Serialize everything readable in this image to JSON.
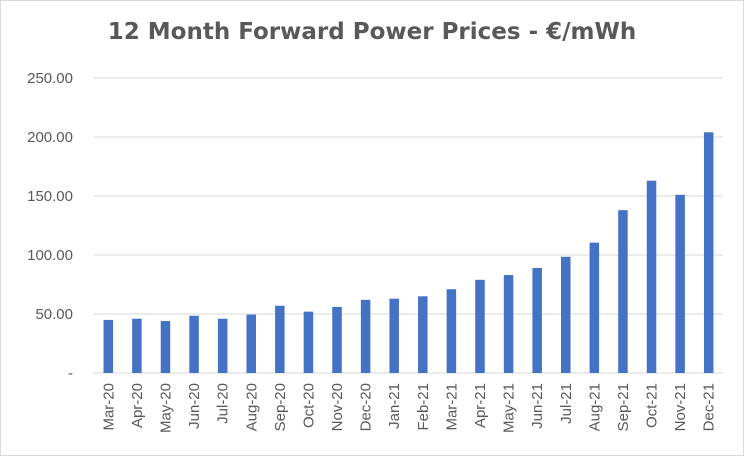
{
  "chart_data": {
    "type": "bar",
    "title": "12 Month Forward Power Prices - €/mWh",
    "xlabel": "",
    "ylabel": "",
    "categories": [
      "Mar-20",
      "Apr-20",
      "May-20",
      "Jun-20",
      "Jul-20",
      "Aug-20",
      "Sep-20",
      "Oct-20",
      "Nov-20",
      "Dec-20",
      "Jan-21",
      "Feb-21",
      "Mar-21",
      "Apr-21",
      "May-21",
      "Jun-21",
      "Jul-21",
      "Aug-21",
      "Sep-21",
      "Oct-21",
      "Nov-21",
      "Dec-21"
    ],
    "values": [
      45.0,
      46.0,
      44.0,
      48.5,
      46.0,
      49.5,
      57.0,
      52.0,
      56.0,
      62.0,
      63.0,
      65.0,
      71.0,
      79.0,
      83.0,
      89.0,
      98.5,
      110.5,
      138.0,
      163.0,
      151.0,
      204.0
    ],
    "ylim": [
      0,
      250
    ],
    "yticks": [
      "-",
      "50.00",
      "100.00",
      "150.00",
      "200.00",
      "250.00"
    ],
    "ytick_values": [
      0,
      50,
      100,
      150,
      200,
      250
    ],
    "bar_color": "#4472c4",
    "grid": true,
    "legend": "none"
  }
}
